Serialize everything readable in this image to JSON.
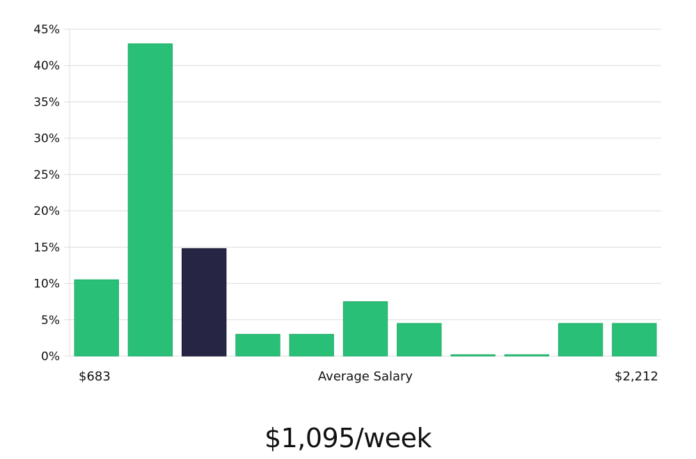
{
  "chart_data": {
    "type": "bar",
    "values": [
      10.5,
      43.0,
      14.8,
      3.0,
      3.0,
      7.5,
      4.5,
      0.1,
      0.1,
      4.5,
      4.5
    ],
    "highlight_index": 2,
    "y_ticks": [
      "0%",
      "5%",
      "10%",
      "15%",
      "20%",
      "25%",
      "30%",
      "35%",
      "40%",
      "45%"
    ],
    "ylim": [
      0,
      45
    ],
    "grid": true,
    "x_min_label": "$683",
    "xlabel": "Average Salary",
    "x_max_label": "$2,212",
    "colors": {
      "bar": "#2abf77",
      "highlight": "#272544",
      "grid": "#dddddd"
    }
  },
  "summary": "$1,095/week"
}
